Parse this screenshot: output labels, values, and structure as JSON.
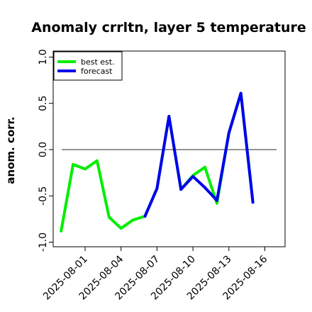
{
  "chart_data": {
    "type": "line",
    "title": "Anomaly crrltn, layer 5 temperature",
    "xlabel": "",
    "ylabel": "anom. corr.",
    "ylim": [
      -1.0,
      1.0
    ],
    "yticks": [
      "-1.0",
      "-0.5",
      "0.0",
      "0.5",
      "1.0"
    ],
    "x": [
      "2025-08-01",
      "2025-08-02",
      "2025-08-03",
      "2025-08-04",
      "2025-08-05",
      "2025-08-06",
      "2025-08-07",
      "2025-08-08",
      "2025-08-09",
      "2025-08-10",
      "2025-08-11",
      "2025-08-12",
      "2025-08-13",
      "2025-08-14",
      "2025-08-15",
      "2025-08-16"
    ],
    "xticks": [
      "2025-08-01",
      "2025-08-04",
      "2025-08-07",
      "2025-08-10",
      "2025-08-13",
      "2025-08-16"
    ],
    "highlight_tick": "2025-08-07",
    "highlight_color": "#228b22",
    "reference_line": 0.0,
    "legend_position": "top-left",
    "series": [
      {
        "name": "best est.",
        "color": "#00ee00",
        "x": [
          "2025-07-30",
          "2025-07-31",
          "2025-08-01",
          "2025-08-02",
          "2025-08-03",
          "2025-08-04",
          "2025-08-05",
          "2025-08-06",
          "2025-08-07",
          "2025-08-08",
          "2025-08-09",
          "2025-08-10",
          "2025-08-11",
          "2025-08-12",
          "2025-08-13",
          "2025-08-14",
          "2025-08-15",
          "2025-08-16"
        ],
        "values": [
          -0.88,
          -0.16,
          -0.21,
          -0.12,
          -0.73,
          -0.85,
          -0.76,
          -0.72,
          -0.42,
          0.36,
          -0.43,
          -0.28,
          -0.19,
          -0.58,
          0.18,
          0.61,
          -0.56,
          null
        ]
      },
      {
        "name": "forecast",
        "color": "#0000ee",
        "x": [
          "2025-08-03",
          "2025-08-04",
          "2025-08-05",
          "2025-08-06",
          "2025-08-07",
          "2025-08-08",
          "2025-08-09",
          "2025-08-10",
          "2025-08-11",
          "2025-08-12",
          "2025-08-13",
          "2025-08-14",
          "2025-08-15",
          "2025-08-16"
        ],
        "values": [
          null,
          null,
          null,
          -0.72,
          -0.42,
          0.36,
          -0.43,
          -0.29,
          -0.41,
          -0.55,
          0.18,
          0.61,
          -0.57,
          null
        ]
      }
    ]
  }
}
